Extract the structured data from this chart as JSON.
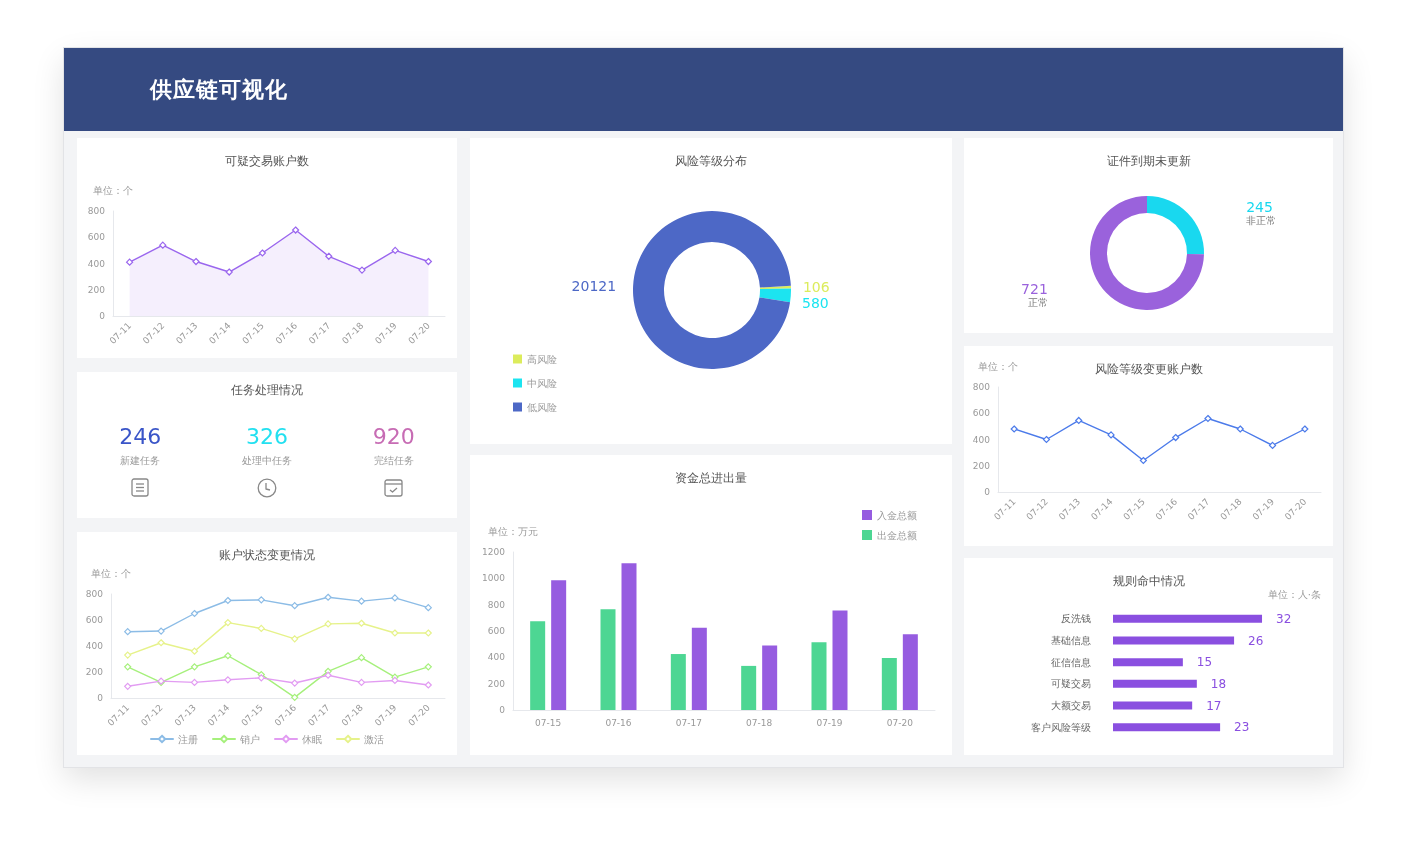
{
  "chart_data": [
    {
      "type": "other",
      "title": "供应链可视化"
    },
    {
      "type": "area",
      "title": "可疑交易账户数",
      "ylabel": "单位：个",
      "categories": [
        "07-11",
        "07-12",
        "07-13",
        "07-14",
        "07-15",
        "07-16",
        "07-17",
        "07-18",
        "07-19",
        "07-20"
      ],
      "values": [
        410,
        540,
        415,
        335,
        480,
        655,
        455,
        350,
        500,
        415
      ],
      "color": "#9a66ee",
      "ylim": [
        0,
        800
      ],
      "yticks": [
        0,
        200,
        400,
        600,
        800
      ],
      "marker": "diamond"
    },
    {
      "type": "other",
      "title": "任务处理情况",
      "categories": [
        "新建任务",
        "处理中任务",
        "完结任务"
      ],
      "values": [
        246,
        326,
        920
      ],
      "data_labels": true
    },
    {
      "type": "line",
      "title": "账户状态变更情况",
      "ylabel": "单位：个",
      "categories": [
        "07-11",
        "07-12",
        "07-13",
        "07-14",
        "07-15",
        "07-16",
        "07-17",
        "07-18",
        "07-19",
        "07-20"
      ],
      "series": [
        {
          "name": "注册",
          "color": "#8cbce6",
          "values": [
            510,
            515,
            650,
            750,
            755,
            710,
            775,
            745,
            770,
            695
          ]
        },
        {
          "name": "销户",
          "color": "#a6f07c",
          "values": [
            240,
            120,
            240,
            325,
            180,
            5,
            205,
            310,
            160,
            240
          ]
        },
        {
          "name": "休眠",
          "color": "#e29cf2",
          "values": [
            90,
            130,
            120,
            140,
            155,
            115,
            175,
            120,
            135,
            100
          ]
        },
        {
          "name": "激活",
          "color": "#e6f28a",
          "values": [
            330,
            425,
            360,
            580,
            535,
            455,
            570,
            575,
            500,
            500
          ]
        }
      ],
      "ylim": [
        0,
        800
      ],
      "yticks": [
        0,
        200,
        400,
        600,
        800
      ],
      "legend": "bottom",
      "marker": "diamond"
    },
    {
      "type": "donut",
      "title": "风险等级分布",
      "categories": [
        "高风险",
        "中风险",
        "低风险"
      ],
      "values": [
        106,
        580,
        20121
      ],
      "colors": [
        "#dcec5c",
        "#1ce4f0",
        "#4d68c6"
      ],
      "data_labels": true,
      "legend": "bottom left"
    },
    {
      "type": "bar",
      "title": "资金总进出量",
      "ylabel": "单位：万元",
      "categories": [
        "07-15",
        "07-16",
        "07-17",
        "07-18",
        "07-19",
        "07-20"
      ],
      "series": [
        {
          "name": "出金总额",
          "color": "#4dd693",
          "values": [
            675,
            765,
            425,
            335,
            515,
            395
          ]
        },
        {
          "name": "入金总额",
          "color": "#965ce0",
          "values": [
            985,
            1115,
            625,
            490,
            755,
            575
          ]
        }
      ],
      "ylim": [
        0,
        1200
      ],
      "yticks": [
        0,
        200,
        400,
        600,
        800,
        1000,
        1200
      ],
      "legend": "top right"
    },
    {
      "type": "donut",
      "title": "证件到期未更新",
      "categories": [
        "非正常",
        "正常"
      ],
      "values": [
        245,
        721
      ],
      "colors": [
        "#19d8ef",
        "#9a62dc"
      ],
      "data_labels": true
    },
    {
      "type": "line",
      "title": "风险等级变更账户数",
      "ylabel": "单位：个",
      "categories": [
        "07-11",
        "07-12",
        "07-13",
        "07-14",
        "07-15",
        "07-16",
        "07-17",
        "07-18",
        "07-19",
        "07-20"
      ],
      "values": [
        480,
        400,
        545,
        435,
        240,
        415,
        560,
        480,
        355,
        480
      ],
      "color": "#4c7bea",
      "ylim": [
        0,
        800
      ],
      "yticks": [
        0,
        200,
        400,
        600,
        800
      ],
      "marker": "diamond"
    },
    {
      "type": "bar",
      "orientation": "horizontal",
      "title": "规则命中情况",
      "xlabel": "单位：人·条",
      "categories": [
        "反洗钱",
        "基础信息",
        "征信信息",
        "可疑交易",
        "大额交易",
        "客户风险等级"
      ],
      "values": [
        32,
        26,
        15,
        18,
        17,
        23
      ],
      "color": "#8a4fe0",
      "data_labels": true,
      "tick_labels": "y"
    }
  ]
}
